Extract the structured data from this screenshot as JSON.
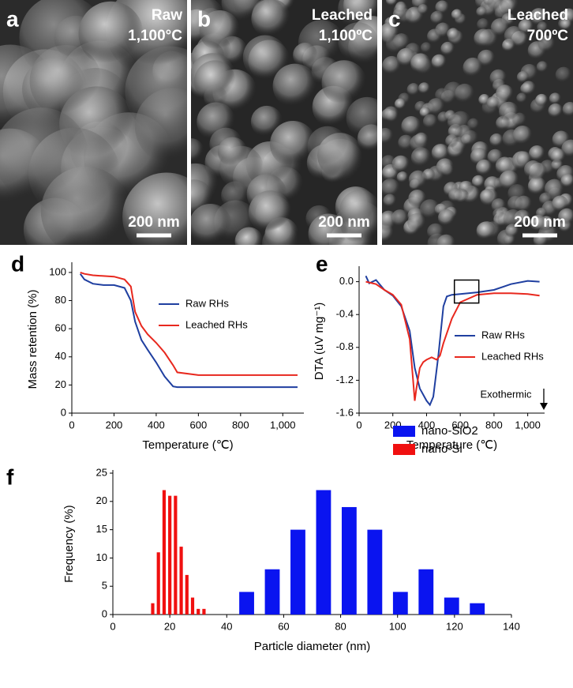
{
  "panels": [
    {
      "label": "a",
      "caption": "Raw",
      "temperature": "1,100°C",
      "scale": "200 nm"
    },
    {
      "label": "b",
      "caption": "Leached",
      "temperature": "1,100ºC",
      "scale": "200 nm"
    },
    {
      "label": "c",
      "caption": "Leached",
      "temperature": "700ºC",
      "scale": "200 nm"
    }
  ],
  "chart_data": [
    {
      "type": "line",
      "label": "d",
      "xlabel": "Temperature (℃)",
      "ylabel": "Mass retention (%)",
      "x": [
        40,
        60,
        100,
        150,
        200,
        250,
        280,
        300,
        330,
        360,
        400,
        440,
        480,
        500,
        600,
        800,
        1000,
        1070
      ],
      "series": [
        {
          "name": "Raw RHs",
          "color": "#1f3fa0",
          "values": [
            99,
            95,
            92,
            91,
            91,
            89,
            80,
            65,
            52,
            45,
            36,
            26,
            19,
            18.5,
            18.5,
            18.5,
            18.5,
            18.5
          ]
        },
        {
          "name": "Leached RHs",
          "color": "#e8281e",
          "values": [
            100,
            99,
            98,
            97.5,
            97,
            95,
            90,
            72,
            62,
            56,
            50,
            43,
            34,
            29,
            27,
            27,
            27,
            27
          ]
        }
      ],
      "xlim": [
        0,
        1100
      ],
      "xticks": [
        0,
        200,
        400,
        600,
        800,
        {
          "value": 1000,
          "label": "1,000"
        }
      ],
      "ylim": [
        0,
        105
      ],
      "yticks": [
        0,
        20,
        40,
        60,
        80,
        100
      ],
      "legend": "center right"
    },
    {
      "type": "line",
      "label": "e",
      "xlabel": "Temperature (℃)",
      "ylabel": "DTA (uV mg⁻¹)",
      "annotation": "Exothermic",
      "series": [
        {
          "name": "Raw RHs",
          "color": "#1f3fa0",
          "x": [
            40,
            60,
            100,
            150,
            200,
            250,
            300,
            330,
            360,
            400,
            420,
            440,
            470,
            500,
            520,
            550,
            600,
            700,
            800,
            900,
            1000,
            1070
          ],
          "values": [
            0.07,
            -0.02,
            0.02,
            -0.1,
            -0.17,
            -0.3,
            -0.6,
            -1.05,
            -1.3,
            -1.45,
            -1.5,
            -1.4,
            -0.9,
            -0.3,
            -0.18,
            -0.16,
            -0.15,
            -0.13,
            -0.1,
            -0.03,
            0.01,
            0.0
          ]
        },
        {
          "name": "Leached RHs",
          "color": "#e8281e",
          "x": [
            40,
            100,
            150,
            200,
            250,
            300,
            320,
            330,
            340,
            360,
            380,
            400,
            430,
            460,
            480,
            500,
            550,
            600,
            700,
            800,
            900,
            1000,
            1070
          ],
          "values": [
            0.0,
            -0.03,
            -0.1,
            -0.16,
            -0.28,
            -0.7,
            -1.2,
            -1.45,
            -1.3,
            -1.05,
            -0.98,
            -0.95,
            -0.92,
            -0.95,
            -0.9,
            -0.75,
            -0.45,
            -0.25,
            -0.16,
            -0.14,
            -0.14,
            -0.15,
            -0.17
          ]
        }
      ],
      "xlim": [
        0,
        1100
      ],
      "xticks": [
        0,
        200,
        400,
        600,
        800,
        {
          "value": 1000,
          "label": "1,000"
        }
      ],
      "ylim": [
        -1.6,
        0.15
      ],
      "yticks": [
        -1.6,
        -1.2,
        -0.8,
        -0.4,
        {
          "value": 0,
          "label": "0.0"
        }
      ],
      "legend": "center right"
    },
    {
      "type": "bar",
      "label": "f",
      "xlabel": "Particle diameter (nm)",
      "ylabel": "Frequency (%)",
      "series": [
        {
          "name": "nano-SiO2",
          "color": "#0a14f0",
          "x": [
            47,
            56,
            65,
            74,
            83,
            92,
            101,
            110,
            119,
            128
          ],
          "values": [
            4,
            8,
            15,
            22,
            19,
            15,
            4,
            8,
            3,
            2
          ]
        },
        {
          "name": "nano-Si",
          "color": "#f01010",
          "x": [
            14,
            16,
            18,
            20,
            22,
            24,
            26,
            28,
            30,
            32
          ],
          "values": [
            2,
            11,
            22,
            21,
            21,
            12,
            7,
            3,
            1,
            1
          ]
        }
      ],
      "xlim": [
        0,
        140
      ],
      "xticks": [
        0,
        20,
        40,
        60,
        80,
        100,
        120,
        140
      ],
      "ylim": [
        0,
        25
      ],
      "yticks": [
        0,
        5,
        10,
        15,
        20,
        25
      ],
      "legend": "upper right"
    }
  ]
}
